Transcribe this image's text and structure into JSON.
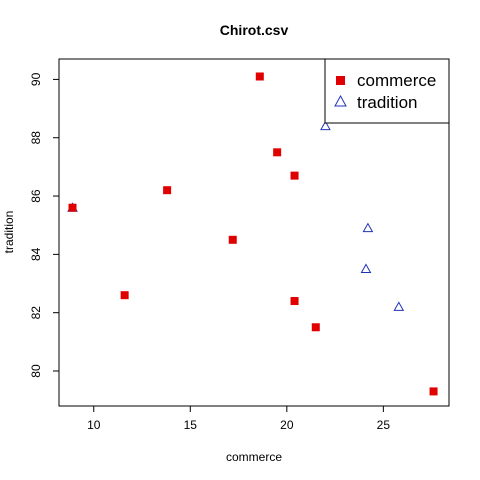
{
  "chart_data": {
    "type": "scatter",
    "title": "Chirot.csv",
    "xlabel": "commerce",
    "ylabel": "tradition",
    "xlim": [
      8.2,
      28.4
    ],
    "ylim": [
      78.8,
      90.7
    ],
    "x_ticks": [
      10,
      15,
      20,
      25
    ],
    "y_ticks": [
      80,
      82,
      84,
      86,
      88,
      90
    ],
    "grid": false,
    "legend_position": "top-right",
    "series": [
      {
        "name": "commerce",
        "marker": "filled-square",
        "color": "#e00000",
        "points": [
          {
            "x": 8.9,
            "y": 85.6
          },
          {
            "x": 11.6,
            "y": 82.6
          },
          {
            "x": 13.8,
            "y": 86.2
          },
          {
            "x": 17.2,
            "y": 84.5
          },
          {
            "x": 18.6,
            "y": 90.1
          },
          {
            "x": 19.5,
            "y": 87.5
          },
          {
            "x": 20.4,
            "y": 86.7
          },
          {
            "x": 20.4,
            "y": 82.4
          },
          {
            "x": 21.5,
            "y": 81.5
          },
          {
            "x": 27.6,
            "y": 79.3
          }
        ]
      },
      {
        "name": "tradition",
        "marker": "open-triangle",
        "color": "#2233bb",
        "points": [
          {
            "x": 8.9,
            "y": 85.6
          },
          {
            "x": 22.0,
            "y": 88.4
          },
          {
            "x": 24.2,
            "y": 84.9
          },
          {
            "x": 24.1,
            "y": 83.5
          },
          {
            "x": 25.8,
            "y": 82.2
          }
        ]
      }
    ]
  }
}
